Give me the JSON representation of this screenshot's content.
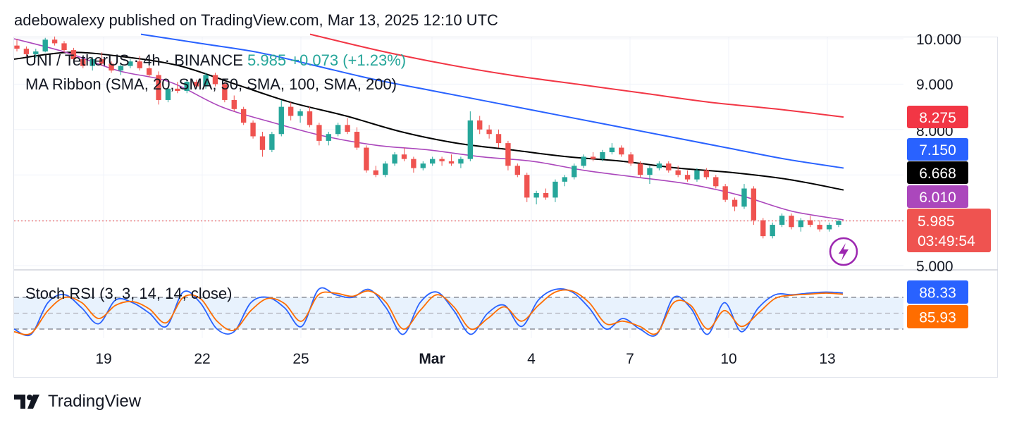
{
  "header": {
    "text": "adebowalexy published on TradingView.com, Mar 13, 2025 12:10 UTC"
  },
  "footer": {
    "brand": "TradingView",
    "logo_icon": "tradingview-logo-icon"
  },
  "legend": {
    "symbol": "UNI / TetherUS · 4h · BINANCE",
    "price": "5.985",
    "change": "+0.073 (+1.23%)",
    "indicator": "MA Ribbon (SMA, 20, SMA, 50, SMA, 100, SMA, 200)",
    "osc": "Stoch RSI (3, 3, 14, 14, close)"
  },
  "colors": {
    "up": "#26a69a",
    "down": "#ef5350",
    "sma20": "#ab47bc",
    "sma50": "#000000",
    "sma100": "#2962ff",
    "sma200": "#f23645",
    "k_line": "#2962ff",
    "d_line": "#ff6d00",
    "band_fill": "#e8f2fd",
    "price_line": "#ef5350",
    "grid": "#f0f3fa"
  },
  "chart_data": [
    {
      "type": "candlestick",
      "title": "UNI / TetherUS · 4h · BINANCE",
      "y_axis": {
        "side": "right",
        "ticks": [
          "10.000",
          "9.000",
          "8.000",
          "5.000"
        ],
        "range": [
          4.98,
          10.1
        ]
      },
      "x_axis": {
        "ticks": [
          "19",
          "22",
          "25",
          "Mar",
          "4",
          "7",
          "10",
          "13"
        ]
      },
      "last_price": "5.985",
      "countdown": "03:49:54",
      "ma_labels": [
        {
          "name": "SMA 200",
          "value": "8.275",
          "color": "#f23645",
          "text_color": "#ffffff"
        },
        {
          "name": "SMA 100",
          "value": "7.150",
          "color": "#2962ff",
          "text_color": "#ffffff"
        },
        {
          "name": "SMA 50",
          "value": "6.668",
          "color": "#000000",
          "text_color": "#ffffff"
        },
        {
          "name": "SMA 20",
          "value": "6.010",
          "color": "#ab47bc",
          "text_color": "#ffffff"
        }
      ],
      "series": {
        "sma20_anchor_values": [
          10.0,
          9.7,
          9.3,
          9.05,
          8.5,
          8.15,
          7.85,
          7.65,
          7.55,
          7.4,
          7.3,
          7.1,
          6.95,
          6.8,
          6.55,
          6.2,
          6.01
        ],
        "sma50_anchor_values": [
          9.55,
          9.7,
          9.6,
          9.4,
          9.0,
          8.6,
          8.3,
          7.95,
          7.7,
          7.55,
          7.4,
          7.3,
          7.15,
          7.05,
          6.9,
          6.668
        ],
        "sma100_anchor_values": [
          10.1,
          9.9,
          9.7,
          9.4,
          9.1,
          8.85,
          8.6,
          8.35,
          8.1,
          7.85,
          7.6,
          7.35,
          7.15
        ],
        "sma200_anchor_values": [
          10.1,
          9.75,
          9.45,
          9.2,
          9.0,
          8.8,
          8.6,
          8.45,
          8.275
        ]
      },
      "candles": [
        [
          9.85,
          10.0,
          9.72,
          9.78
        ],
        [
          9.78,
          9.83,
          9.62,
          9.66
        ],
        [
          9.66,
          9.78,
          9.58,
          9.72
        ],
        [
          9.72,
          10.02,
          9.7,
          9.98
        ],
        [
          9.98,
          10.05,
          9.85,
          9.9
        ],
        [
          9.9,
          9.95,
          9.7,
          9.75
        ],
        [
          9.75,
          9.8,
          9.5,
          9.55
        ],
        [
          9.55,
          9.6,
          9.35,
          9.4
        ],
        [
          9.4,
          9.6,
          9.3,
          9.55
        ],
        [
          9.55,
          9.7,
          9.4,
          9.45
        ],
        [
          9.45,
          9.5,
          9.25,
          9.3
        ],
        [
          9.3,
          9.45,
          9.2,
          9.4
        ],
        [
          9.4,
          9.55,
          9.35,
          9.5
        ],
        [
          9.5,
          9.62,
          9.3,
          9.35
        ],
        [
          9.35,
          9.4,
          9.15,
          9.2
        ],
        [
          9.2,
          9.28,
          8.55,
          8.65
        ],
        [
          8.65,
          8.95,
          8.6,
          8.9
        ],
        [
          8.9,
          9.05,
          8.8,
          8.85
        ],
        [
          8.85,
          9.1,
          8.8,
          9.05
        ],
        [
          9.05,
          9.1,
          8.9,
          8.95
        ],
        [
          8.95,
          9.25,
          8.9,
          9.2
        ],
        [
          9.2,
          9.25,
          8.95,
          9.0
        ],
        [
          9.0,
          9.05,
          8.6,
          8.65
        ],
        [
          8.65,
          8.75,
          8.4,
          8.45
        ],
        [
          8.45,
          8.5,
          8.1,
          8.15
        ],
        [
          8.15,
          8.2,
          7.8,
          7.85
        ],
        [
          7.85,
          7.95,
          7.4,
          7.55
        ],
        [
          7.55,
          7.95,
          7.5,
          7.9
        ],
        [
          7.9,
          8.65,
          7.85,
          8.5
        ],
        [
          8.5,
          8.6,
          8.2,
          8.3
        ],
        [
          8.3,
          8.45,
          8.15,
          8.4
        ],
        [
          8.4,
          8.5,
          8.05,
          8.1
        ],
        [
          8.1,
          8.15,
          7.65,
          7.75
        ],
        [
          7.75,
          7.95,
          7.65,
          7.9
        ],
        [
          7.9,
          8.15,
          7.85,
          8.1
        ],
        [
          8.1,
          8.25,
          7.9,
          7.95
        ],
        [
          7.95,
          8.05,
          7.55,
          7.6
        ],
        [
          7.6,
          7.65,
          7.05,
          7.1
        ],
        [
          7.1,
          7.2,
          6.95,
          7.0
        ],
        [
          7.0,
          7.3,
          6.95,
          7.25
        ],
        [
          7.25,
          7.5,
          7.2,
          7.45
        ],
        [
          7.45,
          7.6,
          7.3,
          7.35
        ],
        [
          7.35,
          7.4,
          7.05,
          7.15
        ],
        [
          7.15,
          7.3,
          7.1,
          7.25
        ],
        [
          7.25,
          7.4,
          7.2,
          7.35
        ],
        [
          7.35,
          7.4,
          7.2,
          7.3
        ],
        [
          7.3,
          7.45,
          7.2,
          7.25
        ],
        [
          7.25,
          7.4,
          7.15,
          7.35
        ],
        [
          7.35,
          8.4,
          7.3,
          8.2
        ],
        [
          8.2,
          8.3,
          7.9,
          8.0
        ],
        [
          8.0,
          8.1,
          7.8,
          7.9
        ],
        [
          7.9,
          8.0,
          7.6,
          7.7
        ],
        [
          7.7,
          7.75,
          7.1,
          7.2
        ],
        [
          7.2,
          7.25,
          6.95,
          7.0
        ],
        [
          7.0,
          7.05,
          6.4,
          6.5
        ],
        [
          6.5,
          6.65,
          6.35,
          6.6
        ],
        [
          6.6,
          6.7,
          6.45,
          6.5
        ],
        [
          6.5,
          6.9,
          6.4,
          6.85
        ],
        [
          6.85,
          7.0,
          6.75,
          6.95
        ],
        [
          6.95,
          7.25,
          6.9,
          7.2
        ],
        [
          7.2,
          7.45,
          7.15,
          7.4
        ],
        [
          7.4,
          7.5,
          7.3,
          7.35
        ],
        [
          7.35,
          7.55,
          7.3,
          7.5
        ],
        [
          7.5,
          7.7,
          7.45,
          7.6
        ],
        [
          7.6,
          7.65,
          7.4,
          7.45
        ],
        [
          7.45,
          7.5,
          7.2,
          7.25
        ],
        [
          7.25,
          7.3,
          6.95,
          7.0
        ],
        [
          7.0,
          7.2,
          6.8,
          7.15
        ],
        [
          7.15,
          7.3,
          7.1,
          7.25
        ],
        [
          7.25,
          7.3,
          7.05,
          7.1
        ],
        [
          7.1,
          7.2,
          6.95,
          7.0
        ],
        [
          7.0,
          7.1,
          6.85,
          6.9
        ],
        [
          6.9,
          7.15,
          6.85,
          7.1
        ],
        [
          7.1,
          7.15,
          6.9,
          6.95
        ],
        [
          6.95,
          7.0,
          6.7,
          6.75
        ],
        [
          6.75,
          6.8,
          6.4,
          6.45
        ],
        [
          6.45,
          6.5,
          6.2,
          6.3
        ],
        [
          6.3,
          6.8,
          6.25,
          6.7
        ],
        [
          6.7,
          6.75,
          5.9,
          6.0
        ],
        [
          6.0,
          6.05,
          5.6,
          5.65
        ],
        [
          5.65,
          5.95,
          5.6,
          5.9
        ],
        [
          5.9,
          6.15,
          5.85,
          6.1
        ],
        [
          6.1,
          6.15,
          5.8,
          5.85
        ],
        [
          5.85,
          6.05,
          5.75,
          6.0
        ],
        [
          6.0,
          6.1,
          5.85,
          5.9
        ],
        [
          5.9,
          6.0,
          5.75,
          5.8
        ],
        [
          5.8,
          5.95,
          5.75,
          5.9
        ],
        [
          5.9,
          6.0,
          5.85,
          5.985
        ]
      ]
    },
    {
      "type": "line",
      "title": "Stoch RSI (3, 3, 14, 14, close)",
      "y_range": [
        0,
        100
      ],
      "levels": [
        80,
        50,
        20
      ],
      "series": [
        {
          "name": "K",
          "value_label": "88.33",
          "color": "#2962ff",
          "text_color": "#ffffff",
          "anchor_values": [
            20,
            10,
            70,
            85,
            60,
            30,
            75,
            70,
            50,
            25,
            90,
            70,
            20,
            15,
            70,
            80,
            60,
            25,
            95,
            85,
            80,
            95,
            60,
            10,
            70,
            90,
            55,
            10,
            50,
            65,
            25,
            75,
            95,
            90,
            60,
            20,
            40,
            20,
            10,
            80,
            60,
            10,
            70,
            15,
            60,
            85,
            85,
            88,
            90,
            88.33
          ]
        },
        {
          "name": "D",
          "value_label": "85.93",
          "color": "#ff6d00",
          "text_color": "#ffffff",
          "anchor_values": [
            15,
            12,
            55,
            80,
            70,
            40,
            65,
            72,
            58,
            32,
            80,
            78,
            35,
            18,
            55,
            78,
            68,
            35,
            85,
            88,
            82,
            92,
            70,
            20,
            55,
            85,
            62,
            20,
            40,
            62,
            35,
            65,
            90,
            92,
            70,
            30,
            35,
            25,
            12,
            70,
            65,
            20,
            55,
            25,
            50,
            78,
            84,
            86,
            88,
            85.93
          ]
        }
      ]
    }
  ]
}
